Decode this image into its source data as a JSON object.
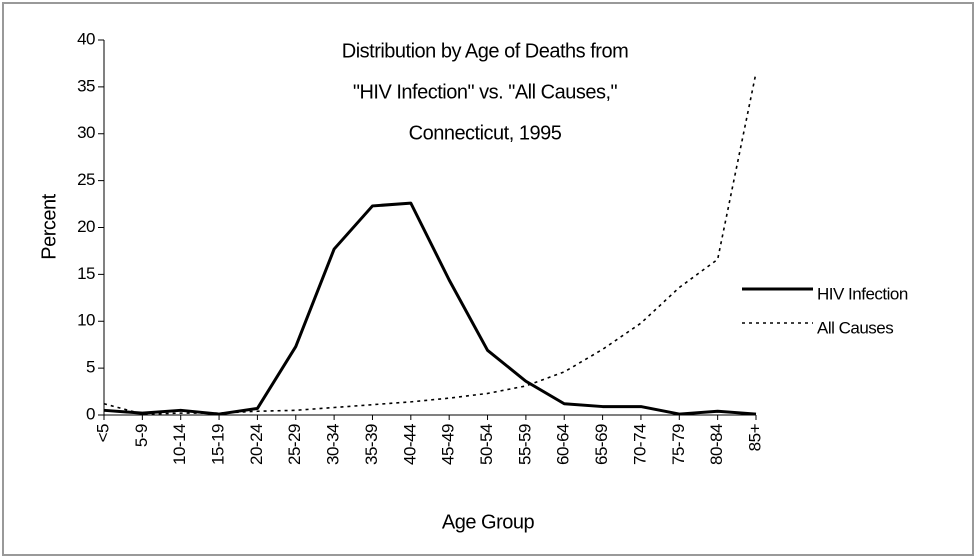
{
  "chart_data": {
    "type": "line",
    "title": [
      "Distribution by Age of Deaths from",
      "\"HIV Infection\" vs. \"All Causes,\"",
      "Connecticut, 1995"
    ],
    "xlabel": "Age Group",
    "ylabel": "Percent",
    "categories": [
      "<5",
      "5-9",
      "10-14",
      "15-19",
      "20-24",
      "25-29",
      "30-34",
      "35-39",
      "40-44",
      "45-49",
      "50-54",
      "55-59",
      "60-64",
      "65-69",
      "70-74",
      "75-79",
      "80-84",
      "85+"
    ],
    "series": [
      {
        "name": "HIV Infection",
        "color": "#000000",
        "style": "solid",
        "values": [
          0.5,
          0.2,
          0.5,
          0.1,
          0.7,
          7.3,
          17.7,
          22.3,
          22.6,
          14.4,
          6.9,
          3.6,
          1.2,
          0.9,
          0.9,
          0.1,
          0.4,
          0.1
        ]
      },
      {
        "name": "All Causes",
        "color": "#000000",
        "style": "dotted",
        "values": [
          1.2,
          0.1,
          0.2,
          0.2,
          0.4,
          0.5,
          0.8,
          1.1,
          1.4,
          1.8,
          2.3,
          3.1,
          4.6,
          7.0,
          9.8,
          13.6,
          16.6,
          36.5
        ]
      }
    ],
    "ylim": [
      0,
      40
    ],
    "yticks": [
      0,
      5,
      10,
      15,
      20,
      25,
      30,
      35,
      40
    ],
    "grid": false,
    "legend": "right"
  }
}
